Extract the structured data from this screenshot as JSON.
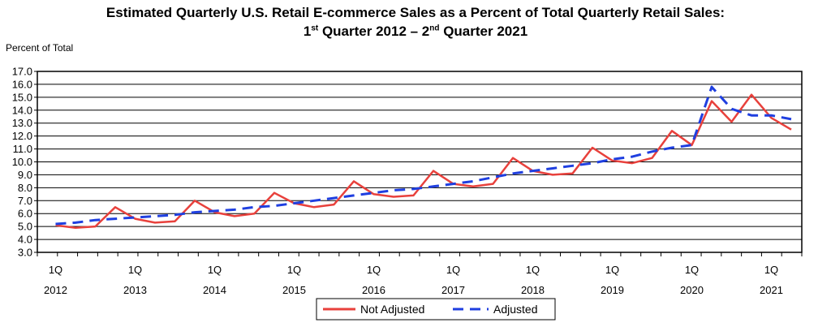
{
  "title": {
    "line1": "Estimated Quarterly U.S. Retail E-commerce Sales as a Percent of Total Quarterly Retail Sales:",
    "line2_a": "1",
    "line2_sup_a": "st",
    "line2_b": " Quarter 2012 – 2",
    "line2_sup_b": "nd",
    "line2_c": " Quarter 2021"
  },
  "chart_data": {
    "type": "line",
    "title": "Estimated Quarterly U.S. Retail E-commerce Sales as a Percent of Total Quarterly Retail Sales: 1st Quarter 2012 – 2nd Quarter 2021",
    "ylabel": "Percent of Total",
    "xlabel": "",
    "ylim": [
      3.0,
      17.0
    ],
    "yticks": [
      "3.0",
      "4.0",
      "5.0",
      "6.0",
      "7.0",
      "8.0",
      "9.0",
      "10.0",
      "11.0",
      "12.0",
      "13.0",
      "14.0",
      "15.0",
      "16.0",
      "17.0"
    ],
    "grid": "horizontal",
    "x_tick_labels": [
      {
        "top": "1Q",
        "bottom": "2012"
      },
      {
        "top": "1Q",
        "bottom": "2013"
      },
      {
        "top": "1Q",
        "bottom": "2014"
      },
      {
        "top": "1Q",
        "bottom": "2015"
      },
      {
        "top": "1Q",
        "bottom": "2016"
      },
      {
        "top": "1Q",
        "bottom": "2017"
      },
      {
        "top": "1Q",
        "bottom": "2018"
      },
      {
        "top": "1Q",
        "bottom": "2019"
      },
      {
        "top": "1Q",
        "bottom": "2020"
      },
      {
        "top": "1Q",
        "bottom": "2021"
      }
    ],
    "x": [
      "2012Q1",
      "2012Q2",
      "2012Q3",
      "2012Q4",
      "2013Q1",
      "2013Q2",
      "2013Q3",
      "2013Q4",
      "2014Q1",
      "2014Q2",
      "2014Q3",
      "2014Q4",
      "2015Q1",
      "2015Q2",
      "2015Q3",
      "2015Q4",
      "2016Q1",
      "2016Q2",
      "2016Q3",
      "2016Q4",
      "2017Q1",
      "2017Q2",
      "2017Q3",
      "2017Q4",
      "2018Q1",
      "2018Q2",
      "2018Q3",
      "2018Q4",
      "2019Q1",
      "2019Q2",
      "2019Q3",
      "2019Q4",
      "2020Q1",
      "2020Q2",
      "2020Q3",
      "2020Q4",
      "2021Q1",
      "2021Q2"
    ],
    "series": [
      {
        "name": "Not Adjusted",
        "color": "#e8413c",
        "style": "solid",
        "values": [
          5.1,
          4.9,
          5.0,
          6.5,
          5.6,
          5.3,
          5.4,
          7.0,
          6.1,
          5.8,
          6.0,
          7.6,
          6.8,
          6.5,
          6.7,
          8.5,
          7.5,
          7.3,
          7.4,
          9.3,
          8.3,
          8.1,
          8.3,
          10.3,
          9.3,
          9.0,
          9.1,
          11.1,
          10.1,
          9.9,
          10.3,
          12.4,
          11.3,
          14.7,
          13.1,
          15.2,
          13.4,
          12.5
        ]
      },
      {
        "name": "Adjusted",
        "color": "#1f3fe0",
        "style": "dashed",
        "values": [
          5.2,
          5.3,
          5.5,
          5.6,
          5.7,
          5.8,
          5.9,
          6.1,
          6.2,
          6.3,
          6.5,
          6.6,
          6.8,
          7.0,
          7.2,
          7.4,
          7.6,
          7.8,
          7.9,
          8.1,
          8.3,
          8.5,
          8.8,
          9.1,
          9.3,
          9.5,
          9.7,
          9.9,
          10.2,
          10.4,
          10.8,
          11.1,
          11.3,
          15.8,
          14.1,
          13.6,
          13.6,
          13.3
        ]
      }
    ],
    "legend": {
      "position": "bottom-center",
      "entries": [
        "Not Adjusted",
        "Adjusted"
      ]
    }
  }
}
